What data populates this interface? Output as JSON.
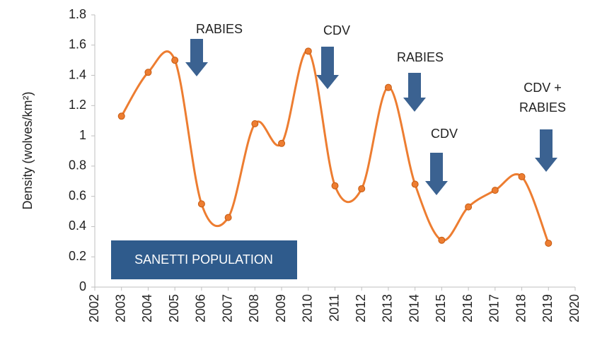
{
  "chart_data": {
    "type": "line",
    "ylabel": "Density (wolves/km²)",
    "x": [
      2003,
      2004,
      2005,
      2006,
      2007,
      2008,
      2009,
      2010,
      2011,
      2012,
      2013,
      2014,
      2015,
      2016,
      2017,
      2018,
      2019
    ],
    "series": [
      {
        "name": "SANETTI POPULATION",
        "color": "#ed7d31",
        "values": [
          1.13,
          1.42,
          1.5,
          0.55,
          0.46,
          1.08,
          0.95,
          1.56,
          0.67,
          0.65,
          1.32,
          0.68,
          0.31,
          0.53,
          0.64,
          0.73,
          0.29
        ]
      }
    ],
    "xlim": [
      2002,
      2020
    ],
    "xticks": [
      2002,
      2003,
      2004,
      2005,
      2006,
      2007,
      2008,
      2009,
      2010,
      2011,
      2012,
      2013,
      2014,
      2015,
      2016,
      2017,
      2018,
      2019,
      2020
    ],
    "ylim": [
      0,
      1.8
    ],
    "yticks": [
      0,
      0.2,
      0.4,
      0.6,
      0.8,
      1,
      1.2,
      1.4,
      1.6,
      1.8
    ],
    "smooth": true,
    "annotations": [
      {
        "lines": [
          "RABIES"
        ]
      },
      {
        "lines": [
          "CDV"
        ]
      },
      {
        "lines": [
          "RABIES"
        ]
      },
      {
        "lines": [
          "CDV"
        ]
      },
      {
        "lines": [
          "CDV +",
          "RABIES"
        ]
      }
    ],
    "annotation_color": "#3b6291",
    "label_box_color": "#2f5b8c"
  }
}
